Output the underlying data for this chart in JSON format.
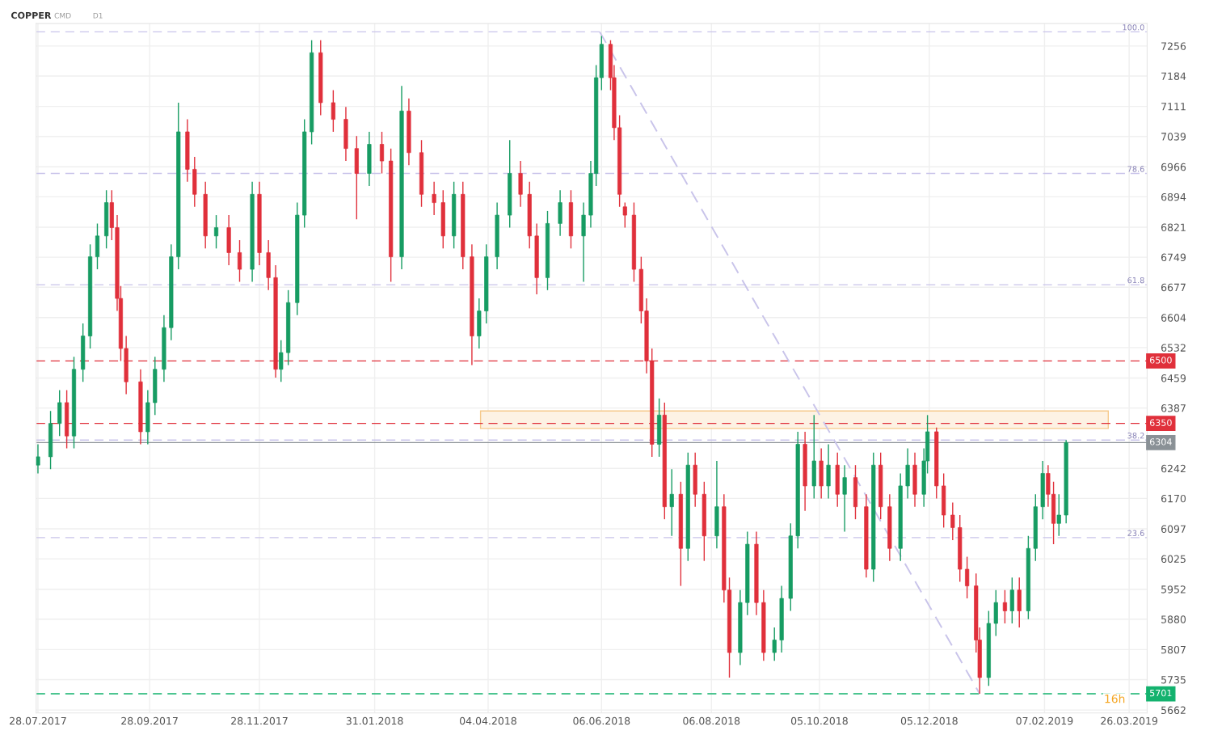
{
  "chart_data": {
    "type": "candlestick",
    "title": "COPPER",
    "annotations": [
      "CMD",
      "D1",
      "16h",
      {
        "text": "100.0",
        "x": "2019-04-05",
        "y": 7290
      },
      {
        "text": "78.6",
        "x": "2019-04-05",
        "y": 6950
      },
      {
        "text": "61.8",
        "x": "2019-04-05",
        "y": 6683
      },
      {
        "text": "38.2",
        "x": "2019-04-05",
        "y": 6310
      },
      {
        "text": "23.6",
        "x": "2019-04-05",
        "y": 6076
      }
    ],
    "x": [
      "2017-07-28",
      "2017-08-04",
      "2017-08-09",
      "2017-08-13",
      "2017-08-17",
      "2017-08-22",
      "2017-08-26",
      "2017-08-30",
      "2017-09-04",
      "2017-09-07",
      "2017-09-10",
      "2017-09-12",
      "2017-09-15",
      "2017-09-23",
      "2017-09-27",
      "2017-10-01",
      "2017-10-06",
      "2017-10-10",
      "2017-10-14",
      "2017-10-19",
      "2017-10-23",
      "2017-10-29",
      "2017-11-04",
      "2017-11-11",
      "2017-11-17",
      "2017-11-24",
      "2017-11-28",
      "2017-12-03",
      "2017-12-07",
      "2017-12-10",
      "2017-12-14",
      "2017-12-19",
      "2017-12-23",
      "2017-12-27",
      "2018-01-01",
      "2018-01-08",
      "2018-01-15",
      "2018-01-21",
      "2018-01-28",
      "2018-02-04",
      "2018-02-09",
      "2018-02-15",
      "2018-02-19",
      "2018-02-26",
      "2018-03-05",
      "2018-03-10",
      "2018-03-16",
      "2018-03-21",
      "2018-03-26",
      "2018-03-30",
      "2018-04-03",
      "2018-04-09",
      "2018-04-16",
      "2018-04-22",
      "2018-04-27",
      "2018-05-01",
      "2018-05-07",
      "2018-05-14",
      "2018-05-20",
      "2018-05-27",
      "2018-05-31",
      "2018-06-03",
      "2018-06-06",
      "2018-06-11",
      "2018-06-13",
      "2018-06-16",
      "2018-06-19",
      "2018-06-24",
      "2018-06-28",
      "2018-07-01",
      "2018-07-04",
      "2018-07-08",
      "2018-07-11",
      "2018-07-15",
      "2018-07-20",
      "2018-07-24",
      "2018-07-28",
      "2018-08-02",
      "2018-08-09",
      "2018-08-13",
      "2018-08-16",
      "2018-08-22",
      "2018-08-26",
      "2018-08-31",
      "2018-09-04",
      "2018-09-10",
      "2018-09-14",
      "2018-09-19",
      "2018-09-23",
      "2018-09-27",
      "2018-10-02",
      "2018-10-06",
      "2018-10-10",
      "2018-10-15",
      "2018-10-19",
      "2018-10-25",
      "2018-10-31",
      "2018-11-04",
      "2018-11-08",
      "2018-11-13",
      "2018-11-19",
      "2018-11-23",
      "2018-11-27",
      "2018-12-02",
      "2018-12-04",
      "2018-12-09",
      "2018-12-13",
      "2018-12-18",
      "2018-12-22",
      "2018-12-26",
      "2018-12-31",
      "2019-01-02",
      "2019-01-07",
      "2019-01-11",
      "2019-01-16",
      "2019-01-20",
      "2019-01-24",
      "2019-01-29",
      "2019-02-02",
      "2019-02-06",
      "2019-02-09",
      "2019-02-12",
      "2019-02-15",
      "2019-02-19"
    ],
    "ohlc": [
      [
        6250,
        6300,
        6230,
        6270
      ],
      [
        6270,
        6380,
        6240,
        6350
      ],
      [
        6350,
        6430,
        6320,
        6400
      ],
      [
        6400,
        6430,
        6290,
        6320
      ],
      [
        6320,
        6510,
        6290,
        6480
      ],
      [
        6480,
        6590,
        6450,
        6560
      ],
      [
        6560,
        6780,
        6530,
        6750
      ],
      [
        6750,
        6830,
        6720,
        6800
      ],
      [
        6800,
        6910,
        6770,
        6880
      ],
      [
        6880,
        6910,
        6790,
        6820
      ],
      [
        6820,
        6850,
        6620,
        6650
      ],
      [
        6650,
        6680,
        6500,
        6530
      ],
      [
        6530,
        6560,
        6420,
        6450
      ],
      [
        6450,
        6480,
        6300,
        6330
      ],
      [
        6330,
        6430,
        6300,
        6400
      ],
      [
        6400,
        6510,
        6370,
        6480
      ],
      [
        6480,
        6610,
        6450,
        6580
      ],
      [
        6580,
        6780,
        6550,
        6750
      ],
      [
        6750,
        7120,
        6720,
        7050
      ],
      [
        7050,
        7080,
        6930,
        6960
      ],
      [
        6960,
        6990,
        6870,
        6900
      ],
      [
        6900,
        6930,
        6770,
        6800
      ],
      [
        6800,
        6850,
        6770,
        6820
      ],
      [
        6820,
        6850,
        6730,
        6760
      ],
      [
        6760,
        6790,
        6690,
        6720
      ],
      [
        6720,
        6930,
        6690,
        6900
      ],
      [
        6900,
        6930,
        6730,
        6760
      ],
      [
        6760,
        6790,
        6670,
        6700
      ],
      [
        6700,
        6730,
        6460,
        6480
      ],
      [
        6480,
        6550,
        6450,
        6520
      ],
      [
        6520,
        6670,
        6490,
        6640
      ],
      [
        6640,
        6880,
        6610,
        6850
      ],
      [
        6850,
        7080,
        6820,
        7050
      ],
      [
        7050,
        7270,
        7020,
        7240
      ],
      [
        7240,
        7270,
        7090,
        7120
      ],
      [
        7120,
        7150,
        7050,
        7080
      ],
      [
        7080,
        7110,
        6980,
        7010
      ],
      [
        7010,
        7040,
        6840,
        6950
      ],
      [
        6950,
        7050,
        6920,
        7020
      ],
      [
        7020,
        7050,
        6950,
        6980
      ],
      [
        6980,
        7010,
        6690,
        6750
      ],
      [
        6750,
        7160,
        6720,
        7100
      ],
      [
        7100,
        7130,
        6970,
        7000
      ],
      [
        7000,
        7030,
        6870,
        6900
      ],
      [
        6900,
        6930,
        6850,
        6880
      ],
      [
        6880,
        6910,
        6770,
        6800
      ],
      [
        6800,
        6930,
        6770,
        6900
      ],
      [
        6900,
        6930,
        6720,
        6750
      ],
      [
        6750,
        6780,
        6490,
        6560
      ],
      [
        6560,
        6650,
        6530,
        6620
      ],
      [
        6620,
        6780,
        6590,
        6750
      ],
      [
        6750,
        6880,
        6720,
        6850
      ],
      [
        6850,
        7030,
        6820,
        6950
      ],
      [
        6950,
        6980,
        6870,
        6900
      ],
      [
        6900,
        6930,
        6770,
        6800
      ],
      [
        6800,
        6830,
        6660,
        6700
      ],
      [
        6700,
        6860,
        6670,
        6830
      ],
      [
        6830,
        6910,
        6800,
        6880
      ],
      [
        6880,
        6910,
        6770,
        6800
      ],
      [
        6800,
        6880,
        6690,
        6850
      ],
      [
        6850,
        6980,
        6820,
        6950
      ],
      [
        6950,
        7210,
        6920,
        7180
      ],
      [
        7180,
        7280,
        7150,
        7260
      ],
      [
        7260,
        7270,
        7150,
        7180
      ],
      [
        7180,
        7210,
        7030,
        7060
      ],
      [
        7060,
        7090,
        6870,
        6900
      ],
      [
        6870,
        6880,
        6820,
        6850
      ],
      [
        6850,
        6880,
        6690,
        6720
      ],
      [
        6720,
        6750,
        6590,
        6620
      ],
      [
        6620,
        6650,
        6470,
        6500
      ],
      [
        6500,
        6530,
        6270,
        6300
      ],
      [
        6300,
        6410,
        6270,
        6370
      ],
      [
        6370,
        6400,
        6120,
        6150
      ],
      [
        6150,
        6240,
        6080,
        6180
      ],
      [
        6180,
        6210,
        5960,
        6050
      ],
      [
        6050,
        6280,
        6020,
        6250
      ],
      [
        6250,
        6280,
        6150,
        6180
      ],
      [
        6180,
        6210,
        6020,
        6080
      ],
      [
        6080,
        6260,
        6050,
        6150
      ],
      [
        6150,
        6180,
        5920,
        5950
      ],
      [
        5950,
        5980,
        5740,
        5800
      ],
      [
        5800,
        5950,
        5770,
        5920
      ],
      [
        5920,
        6090,
        5890,
        6060
      ],
      [
        6060,
        6090,
        5890,
        5920
      ],
      [
        5920,
        5950,
        5780,
        5800
      ],
      [
        5800,
        5860,
        5780,
        5830
      ],
      [
        5830,
        5960,
        5800,
        5930
      ],
      [
        5930,
        6110,
        5900,
        6080
      ],
      [
        6080,
        6330,
        6050,
        6300
      ],
      [
        6300,
        6330,
        6140,
        6200
      ],
      [
        6200,
        6370,
        6170,
        6260
      ],
      [
        6260,
        6290,
        6170,
        6200
      ],
      [
        6200,
        6300,
        6170,
        6250
      ],
      [
        6250,
        6280,
        6150,
        6180
      ],
      [
        6180,
        6250,
        6090,
        6220
      ],
      [
        6220,
        6250,
        6120,
        6150
      ],
      [
        6150,
        6180,
        5980,
        6000
      ],
      [
        6000,
        6280,
        5970,
        6250
      ],
      [
        6250,
        6280,
        6120,
        6150
      ],
      [
        6150,
        6180,
        6020,
        6050
      ],
      [
        6050,
        6230,
        6020,
        6200
      ],
      [
        6200,
        6290,
        6170,
        6250
      ],
      [
        6250,
        6280,
        6150,
        6180
      ],
      [
        6180,
        6290,
        6150,
        6260
      ],
      [
        6260,
        6370,
        6230,
        6330
      ],
      [
        6330,
        6340,
        6170,
        6200
      ],
      [
        6200,
        6230,
        6100,
        6130
      ],
      [
        6130,
        6160,
        6070,
        6100
      ],
      [
        6100,
        6130,
        5970,
        6000
      ],
      [
        6000,
        6030,
        5930,
        5960
      ],
      [
        5960,
        5990,
        5800,
        5830
      ],
      [
        5830,
        5860,
        5701,
        5740
      ],
      [
        5740,
        5900,
        5720,
        5870
      ],
      [
        5870,
        5950,
        5840,
        5920
      ],
      [
        5920,
        5950,
        5870,
        5900
      ],
      [
        5900,
        5980,
        5870,
        5950
      ],
      [
        5950,
        5980,
        5860,
        5900
      ],
      [
        5900,
        6080,
        5880,
        6050
      ],
      [
        6050,
        6180,
        6020,
        6150
      ],
      [
        6150,
        6260,
        6120,
        6230
      ],
      [
        6230,
        6250,
        6150,
        6180
      ],
      [
        6180,
        6210,
        6060,
        6110
      ],
      [
        6110,
        6180,
        6080,
        6130
      ],
      [
        6130,
        6310,
        6110,
        6304
      ]
    ],
    "colors": [
      "#179c63",
      "#179c63",
      "#179c63",
      "#e0303b",
      "#179c63",
      "#179c63",
      "#179c63",
      "#179c63",
      "#179c63",
      "#e0303b",
      "#e0303b",
      "#e0303b",
      "#e0303b",
      "#e0303b",
      "#179c63",
      "#179c63",
      "#179c63",
      "#179c63",
      "#179c63",
      "#e0303b",
      "#e0303b",
      "#e0303b",
      "#179c63",
      "#e0303b",
      "#e0303b",
      "#179c63",
      "#e0303b",
      "#e0303b",
      "#e0303b",
      "#179c63",
      "#179c63",
      "#179c63",
      "#179c63",
      "#179c63",
      "#e0303b",
      "#e0303b",
      "#e0303b",
      "#e0303b",
      "#179c63",
      "#e0303b",
      "#e0303b",
      "#179c63",
      "#e0303b",
      "#e0303b",
      "#e0303b",
      "#e0303b",
      "#179c63",
      "#e0303b",
      "#e0303b",
      "#179c63",
      "#179c63",
      "#179c63",
      "#179c63",
      "#e0303b",
      "#e0303b",
      "#e0303b",
      "#179c63",
      "#179c63",
      "#e0303b",
      "#179c63",
      "#179c63",
      "#179c63",
      "#179c63",
      "#e0303b",
      "#e0303b",
      "#e0303b",
      "#e0303b",
      "#e0303b",
      "#e0303b",
      "#e0303b",
      "#e0303b",
      "#179c63",
      "#e0303b",
      "#179c63",
      "#e0303b",
      "#179c63",
      "#e0303b",
      "#e0303b",
      "#179c63",
      "#e0303b",
      "#e0303b",
      "#179c63",
      "#179c63",
      "#e0303b",
      "#e0303b",
      "#179c63",
      "#179c63",
      "#179c63",
      "#179c63",
      "#e0303b",
      "#179c63",
      "#e0303b",
      "#179c63",
      "#e0303b",
      "#179c63",
      "#e0303b",
      "#e0303b",
      "#179c63",
      "#e0303b",
      "#e0303b",
      "#179c63",
      "#179c63",
      "#e0303b",
      "#179c63",
      "#179c63",
      "#e0303b",
      "#e0303b",
      "#e0303b",
      "#e0303b",
      "#e0303b",
      "#e0303b",
      "#e0303b",
      "#179c63",
      "#179c63",
      "#e0303b",
      "#179c63",
      "#e0303b",
      "#179c63",
      "#179c63",
      "#179c63",
      "#e0303b",
      "#e0303b",
      "#179c63",
      "#179c63"
    ],
    "series": [
      {
        "type": "line",
        "x": [
          "2018-06-05",
          "2019-01-02"
        ],
        "values": [
          7290,
          5701
        ],
        "color": "#c9c4ea",
        "line_style": "dashed"
      }
    ],
    "ref_lines": [
      {
        "axis": "y",
        "value": 7290,
        "color": "#c9c4ea",
        "line_style": "dashed"
      },
      {
        "axis": "y",
        "value": 6950,
        "color": "#c9c4ea",
        "line_style": "dashed"
      },
      {
        "axis": "y",
        "value": 6683,
        "color": "#c9c4ea",
        "line_style": "dashed"
      },
      {
        "axis": "y",
        "value": 6500,
        "label": "6500",
        "color": "#e0303b",
        "line_style": "dashed"
      },
      {
        "axis": "y",
        "value": 6350,
        "label": "6350",
        "color": "#e0303b",
        "line_style": "dashed"
      },
      {
        "axis": "y",
        "value": 6310,
        "color": "#c9c4ea",
        "line_style": "dashed"
      },
      {
        "axis": "y",
        "value": 6304,
        "label": "6304",
        "color": "#8a9196",
        "line_style": "solid"
      },
      {
        "axis": "y",
        "value": 6076,
        "color": "#c9c4ea",
        "line_style": "dashed"
      },
      {
        "axis": "y",
        "value": 5701,
        "label": "5701",
        "color": "#13b26e",
        "line_style": "dashed"
      }
    ],
    "bands": [
      {
        "axis": "y",
        "from": 6338,
        "to": 6380,
        "color": "#fdf2e4"
      }
    ],
    "xlim": [
      "2017-07-27",
      "2019-04-05"
    ],
    "ylim": [
      5655,
      7310
    ],
    "xticks": [
      {
        "value": "2017-07-28",
        "label": "28.07.2017"
      },
      {
        "value": "2017-09-28",
        "label": "28.09.2017"
      },
      {
        "value": "2017-11-28",
        "label": "28.11.2017"
      },
      {
        "value": "2018-01-31",
        "label": "31.01.2018"
      },
      {
        "value": "2018-04-04",
        "label": "04.04.2018"
      },
      {
        "value": "2018-06-06",
        "label": "06.06.2018"
      },
      {
        "value": "2018-08-06",
        "label": "06.08.2018"
      },
      {
        "value": "2018-10-05",
        "label": "05.10.2018"
      },
      {
        "value": "2018-12-05",
        "label": "05.12.2018"
      },
      {
        "value": "2019-02-07",
        "label": "07.02.2019"
      },
      {
        "value": "2019-03-26",
        "label": "26.03.2019"
      }
    ],
    "yticks": [
      5662,
      5735,
      5807,
      5880,
      5952,
      6025,
      6097,
      6170,
      6242,
      6387,
      6459,
      6532,
      6604,
      6677,
      6749,
      6821,
      6894,
      6966,
      7039,
      7111,
      7184,
      7256
    ],
    "grid": true,
    "legend": false
  }
}
